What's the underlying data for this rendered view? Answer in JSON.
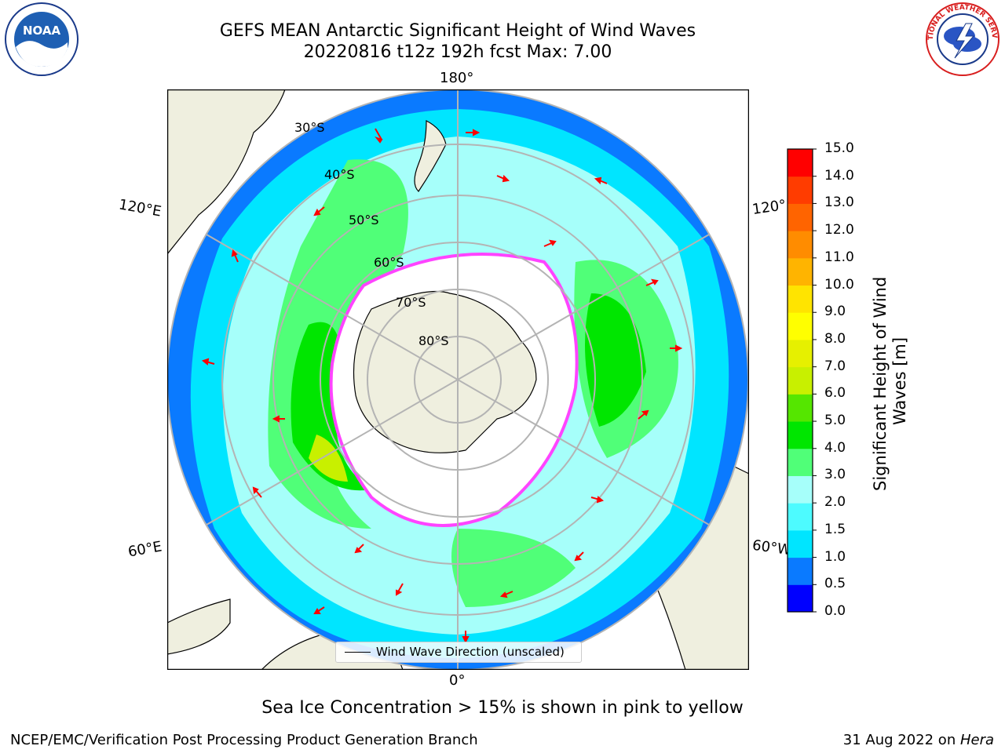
{
  "title": {
    "line1": "GEFS MEAN Antarctic Significant Height of Wind Waves",
    "line2": "20220816 t12z 192h fcst   Max: 7.00"
  },
  "map": {
    "projection": "south-polar-stereographic",
    "longitude_labels": {
      "top": "180°",
      "bottom": "0°",
      "upper_left": "120°E",
      "upper_right": "120°",
      "lower_left": "60°E",
      "lower_right": "60°W"
    },
    "latitude_labels": [
      "30°S",
      "40°S",
      "50°S",
      "60°S",
      "70°S",
      "80°S"
    ],
    "colors": {
      "land": "#efefdf",
      "no_data": "#ffffff",
      "gridlines": "#b4b4b4",
      "arrows": "#ff0000",
      "sea_ice": "#ff44ff"
    }
  },
  "colorbar": {
    "label": "Significant Height of Wind Waves [m]",
    "ticks": [
      "0.0",
      "0.5",
      "1.0",
      "1.5",
      "2.0",
      "3.0",
      "4.0",
      "5.0",
      "6.0",
      "7.0",
      "8.0",
      "9.0",
      "10.0",
      "11.0",
      "12.0",
      "13.0",
      "14.0",
      "15.0"
    ],
    "colors": [
      "#0000ff",
      "#0a7aff",
      "#00e5ff",
      "#4dfbff",
      "#a6fffa",
      "#50ff78",
      "#00e600",
      "#55e600",
      "#c8f000",
      "#e6f000",
      "#ffff00",
      "#ffe400",
      "#ffb400",
      "#ff8c00",
      "#ff6400",
      "#ff3c00",
      "#ff0000"
    ]
  },
  "legend": {
    "label": "Wind Wave Direction (unscaled)"
  },
  "footnote": "Sea Ice Concentration > 15% is shown in pink to yellow",
  "credit": "NCEP/EMC/Verification Post Processing Product Generation Branch",
  "datestamp": {
    "date": "31 Aug 2022 on ",
    "host": "Hera"
  },
  "logos": {
    "left_text": "NOAA",
    "right_text": "NATIONAL WEATHER SERVICE"
  }
}
